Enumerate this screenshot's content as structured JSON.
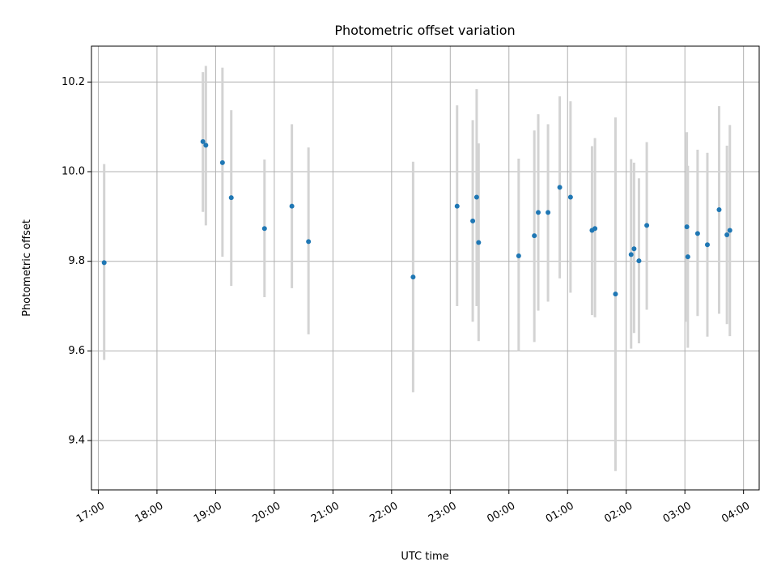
{
  "chart_data": {
    "type": "scatter",
    "title": "Photometric offset variation",
    "xlabel": "UTC time",
    "ylabel": "Photometric offset",
    "x_unit": "hours (UTC, continuing past midnight)",
    "xlim": [
      "16:53",
      "04:16"
    ],
    "ylim": [
      9.29,
      10.28
    ],
    "grid": true,
    "x_ticks": [
      "17:00",
      "18:00",
      "19:00",
      "20:00",
      "21:00",
      "22:00",
      "23:00",
      "00:00",
      "01:00",
      "02:00",
      "03:00",
      "04:00"
    ],
    "y_ticks": [
      "9.4",
      "9.6",
      "9.8",
      "10.0",
      "10.2"
    ],
    "series": [
      {
        "color": "#1f77b4",
        "errorbar_color": "#d3d3d3",
        "points": [
          {
            "t": "17:06",
            "y": 9.797,
            "lo": 9.58,
            "hi": 10.017
          },
          {
            "t": "18:47",
            "y": 10.067,
            "lo": 9.91,
            "hi": 10.222
          },
          {
            "t": "18:50",
            "y": 10.059,
            "lo": 9.88,
            "hi": 10.236
          },
          {
            "t": "19:07",
            "y": 10.02,
            "lo": 9.81,
            "hi": 10.232
          },
          {
            "t": "19:16",
            "y": 9.942,
            "lo": 9.745,
            "hi": 10.137
          },
          {
            "t": "19:50",
            "y": 9.873,
            "lo": 9.72,
            "hi": 10.027
          },
          {
            "t": "20:18",
            "y": 9.923,
            "lo": 9.74,
            "hi": 10.106
          },
          {
            "t": "20:35",
            "y": 9.844,
            "lo": 9.637,
            "hi": 10.054
          },
          {
            "t": "22:22",
            "y": 9.765,
            "lo": 9.508,
            "hi": 10.022
          },
          {
            "t": "23:07",
            "y": 9.923,
            "lo": 9.7,
            "hi": 10.148
          },
          {
            "t": "23:23",
            "y": 9.89,
            "lo": 9.665,
            "hi": 10.115
          },
          {
            "t": "23:27",
            "y": 9.943,
            "lo": 9.7,
            "hi": 10.184
          },
          {
            "t": "23:29",
            "y": 9.842,
            "lo": 9.622,
            "hi": 10.063
          },
          {
            "t": "00:10",
            "y": 9.812,
            "lo": 9.6,
            "hi": 10.029
          },
          {
            "t": "00:26",
            "y": 9.857,
            "lo": 9.62,
            "hi": 10.092
          },
          {
            "t": "00:30",
            "y": 9.909,
            "lo": 9.69,
            "hi": 10.128
          },
          {
            "t": "00:40",
            "y": 9.909,
            "lo": 9.71,
            "hi": 10.106
          },
          {
            "t": "00:52",
            "y": 9.965,
            "lo": 9.762,
            "hi": 10.168
          },
          {
            "t": "01:03",
            "y": 9.943,
            "lo": 9.73,
            "hi": 10.157
          },
          {
            "t": "01:25",
            "y": 9.869,
            "lo": 9.68,
            "hi": 10.057
          },
          {
            "t": "01:28",
            "y": 9.873,
            "lo": 9.675,
            "hi": 10.075
          },
          {
            "t": "01:49",
            "y": 9.727,
            "lo": 9.332,
            "hi": 10.121
          },
          {
            "t": "02:05",
            "y": 9.815,
            "lo": 9.605,
            "hi": 10.028
          },
          {
            "t": "02:08",
            "y": 9.828,
            "lo": 9.64,
            "hi": 10.02
          },
          {
            "t": "02:13",
            "y": 9.801,
            "lo": 9.617,
            "hi": 9.985
          },
          {
            "t": "02:21",
            "y": 9.88,
            "lo": 9.692,
            "hi": 10.066
          },
          {
            "t": "03:02",
            "y": 9.877,
            "lo": 9.665,
            "hi": 10.088
          },
          {
            "t": "03:03",
            "y": 9.81,
            "lo": 9.607,
            "hi": 10.013
          },
          {
            "t": "03:13",
            "y": 9.862,
            "lo": 9.678,
            "hi": 10.049
          },
          {
            "t": "03:23",
            "y": 9.837,
            "lo": 9.632,
            "hi": 10.042
          },
          {
            "t": "03:35",
            "y": 9.915,
            "lo": 9.683,
            "hi": 10.146
          },
          {
            "t": "03:43",
            "y": 9.859,
            "lo": 9.66,
            "hi": 10.058
          },
          {
            "t": "03:46",
            "y": 9.869,
            "lo": 9.633,
            "hi": 10.104
          }
        ]
      }
    ]
  }
}
